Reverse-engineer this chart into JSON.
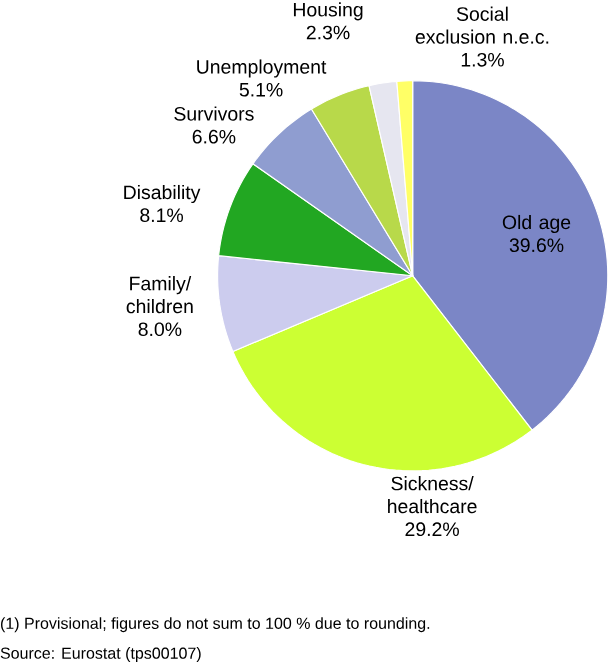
{
  "chart_data": {
    "type": "pie",
    "categories": [
      "Old age",
      "Sickness/ healthcare",
      "Family/ children",
      "Disability",
      "Survivors",
      "Unemployment",
      "Housing",
      "Social exclusion n.e.c."
    ],
    "values": [
      39.6,
      29.2,
      8.0,
      8.1,
      6.6,
      5.1,
      2.3,
      1.3
    ],
    "value_labels": [
      "39.6%",
      "29.2%",
      "8.0%",
      "8.1%",
      "6.6%",
      "5.1%",
      "2.3%",
      "1.3%"
    ],
    "colors": [
      "#7b86c6",
      "#ccff33",
      "#ccccee",
      "#22a722",
      "#8f9dd0",
      "#b8d94a",
      "#e6e6f0",
      "#ffff66"
    ],
    "annotations": [
      "(1) Provisional; figures do not sum to 100 % due to rounding.",
      "Source: Eurostat (tps00107)"
    ]
  }
}
